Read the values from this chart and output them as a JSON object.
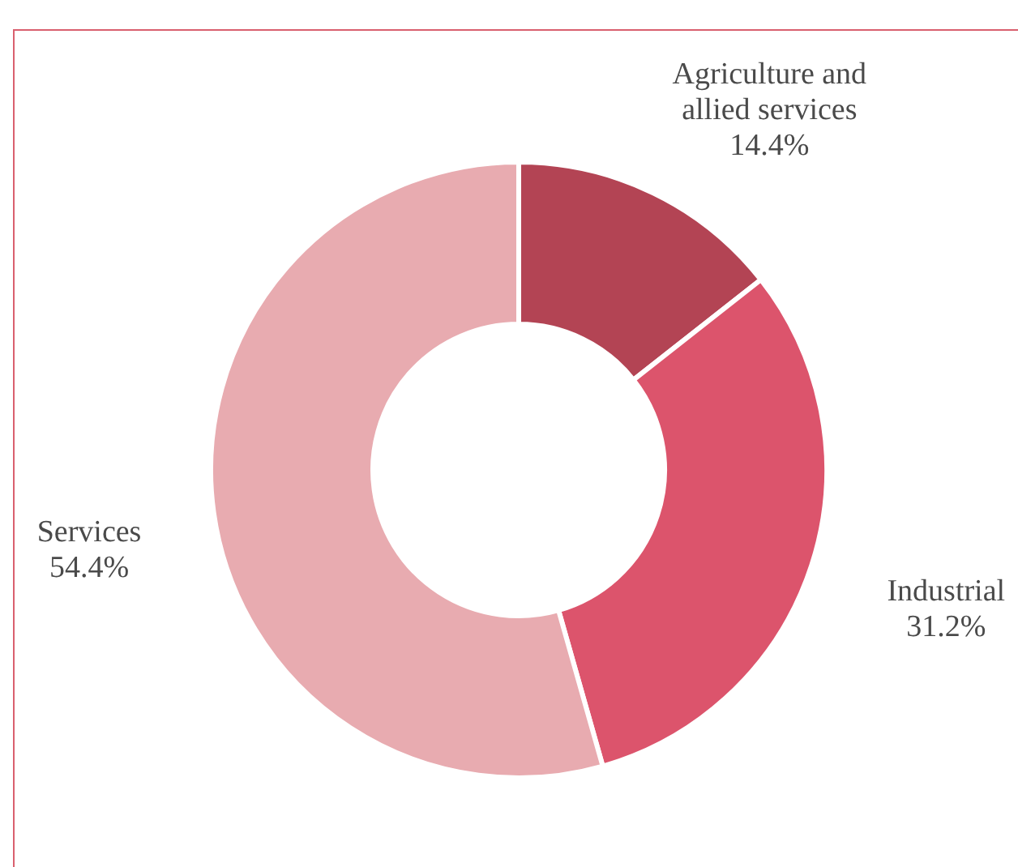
{
  "chart_data": {
    "type": "donut",
    "categories": [
      "Agriculture and allied services",
      "Industrial",
      "Services"
    ],
    "values": [
      14.4,
      31.2,
      54.4
    ],
    "value_labels": [
      "14.4%",
      "31.2%",
      "54.4%"
    ],
    "colors": [
      "#b34454",
      "#dc546c",
      "#e8abb0"
    ]
  }
}
